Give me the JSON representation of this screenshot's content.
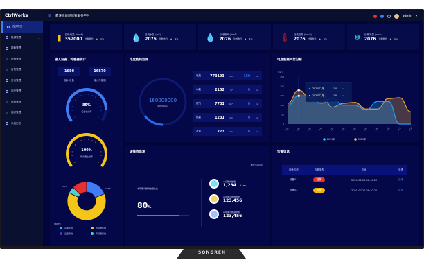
{
  "brand": "SONGREN",
  "app": {
    "logo": "CtrlWorks",
    "title": "鑫沃思能耗监管服务平台",
    "user": "admin"
  },
  "sidebar": {
    "items": [
      {
        "label": "首页概览",
        "active": true
      },
      {
        "label": "能源管理",
        "chev": true
      },
      {
        "label": "能耗管理",
        "chev": true
      },
      {
        "label": "设备管理",
        "chev": true
      },
      {
        "label": "告警管理"
      },
      {
        "label": "日志管理"
      },
      {
        "label": "用户管理"
      },
      {
        "label": "角色管理"
      },
      {
        "label": "组织管理"
      },
      {
        "label": "系统日志"
      }
    ]
  },
  "cards": [
    {
      "label": "日耗电量 (kw*h)",
      "value": "352000",
      "compare": "比较昨日",
      "change": "1%",
      "icon": "battery-icon",
      "color": "#f5c518",
      "glyph": "▮"
    },
    {
      "label": "日耗水量 (m³)",
      "value": "2076",
      "compare": "比较昨日",
      "change": "1%",
      "icon": "water-drop-icon",
      "color": "#1aa0ff",
      "glyph": "💧"
    },
    {
      "label": "日耗燃气 (Nm³)",
      "value": "2076",
      "compare": "比较昨日",
      "change": "1%",
      "icon": "gas-icon",
      "color": "#19c7d8",
      "glyph": "💧"
    },
    {
      "label": "日耗热能 (kw·h)",
      "value": "2076",
      "compare": "比较昨日",
      "change": "1%",
      "icon": "thermometer-icon",
      "color": "#e0242a",
      "glyph": "🌡"
    },
    {
      "label": "日耗冷量 (kw·h)",
      "value": "2076",
      "compare": "比较昨日",
      "change": "1%",
      "icon": "snowflake-icon",
      "color": "#19d8e8",
      "glyph": "❄"
    }
  ],
  "devices": {
    "title": "接入设备、传感器统计",
    "device_count": "1680",
    "device_label": "接入设备",
    "sensor_count": "16870",
    "sensor_label": "接入传感器",
    "device_online": {
      "value": 85,
      "text": "85%",
      "label": "设备在线率"
    },
    "sensor_online": {
      "value": 100,
      "text": "100%",
      "label": "传感器在线率"
    },
    "donut": {
      "labels": [
        "1680",
        "185",
        "16870"
      ],
      "slices": [
        {
          "name": "设备在线",
          "value": 1680,
          "color": "#3f7cf5"
        },
        {
          "name": "传感器在线",
          "value": 5600,
          "color": "#f5c518"
        },
        {
          "name": "传感器离线",
          "value": 500,
          "color": "#4fd1c5"
        },
        {
          "name": "设备离线",
          "value": 1100,
          "color": "#e8302f"
        }
      ]
    },
    "legend": [
      {
        "name": "设备在线",
        "color": "#19c7ff"
      },
      {
        "name": "传感器在线",
        "color": "#f5c518"
      },
      {
        "name": "设备离线",
        "color": "#3a3ac8"
      },
      {
        "name": "传感器离线",
        "color": "#4fd1c5"
      }
    ]
  },
  "energy": {
    "title": "电度能耗监测",
    "total": "160000000",
    "total_label": "总标值(kw)",
    "rows": [
      {
        "name": "电能",
        "value": "773193",
        "unit": "kwh",
        "kw": "160",
        "kwu": "kw"
      },
      {
        "name": "水能",
        "value": "2152",
        "unit": "m³",
        "kw": "0",
        "kwu": "kw"
      },
      {
        "name": "燃气",
        "value": "7731",
        "unit": "Nm³",
        "kw": "0",
        "kwu": "kw"
      },
      {
        "name": "热能",
        "value": "1231",
        "unit": "kwh",
        "kw": "0",
        "kwu": "kw"
      },
      {
        "name": "冷量",
        "value": "773",
        "unit": "kwh",
        "kw": "0",
        "kwu": "kw"
      }
    ]
  },
  "chart_data": {
    "type": "area",
    "title": "电度能耗同比分析",
    "ylabel": "(kw)",
    "ylim": [
      0,
      250
    ],
    "yticks": [
      0,
      50,
      100,
      150,
      200,
      250
    ],
    "categories": [
      "1月",
      "2月",
      "3月",
      "4月",
      "5月",
      "6月",
      "7月",
      "8月",
      "9月",
      "10月",
      "11月",
      "12月"
    ],
    "series": [
      {
        "name": "2021年",
        "color": "#1aa0ff",
        "values": [
          100,
          150,
          150,
          110,
          140,
          100,
          100,
          75,
          120,
          120,
          0,
          0
        ]
      },
      {
        "name": "2020年",
        "color": "#e8a53a",
        "values": [
          110,
          180,
          140,
          165,
          90,
          110,
          115,
          80,
          80,
          135,
          140,
          65
        ]
      }
    ],
    "tooltip": [
      {
        "label": "2021年2月",
        "value": "150",
        "unit": "kw"
      },
      {
        "label": "2020年2月",
        "value": "180",
        "unit": "kw"
      }
    ],
    "legend": "bottom",
    "grid": false
  },
  "carbon": {
    "title": "碳排放监测",
    "unit": "单位(kgCO2)",
    "ratio_label": "本年累计碳排放量占比",
    "ratio": 80,
    "ratio_text": "80",
    "pct": "%",
    "items": [
      {
        "label": "今日碳排放量",
        "value": "1,234",
        "change": "10%",
        "color": "#7de0f0"
      },
      {
        "label": "本年累计碳排放量",
        "value": "123,456",
        "color": "#f5d56b"
      },
      {
        "label": "本年累计碳减排量",
        "value": "123,456",
        "color": "#9ec4ff"
      }
    ]
  },
  "alarms": {
    "title": "告警信息",
    "headers": [
      "设备名称",
      "告警类型",
      "时间",
      "处理"
    ],
    "rows": [
      {
        "device": "设备01",
        "type": "告警",
        "color": "#e8302f",
        "time": "2021-02-21 08:40:20",
        "action": "处理"
      },
      {
        "device": "设备02",
        "type": "预警",
        "color": "#f5b800",
        "time": "2021-02-21 08:40:20",
        "action": "处理"
      }
    ]
  }
}
